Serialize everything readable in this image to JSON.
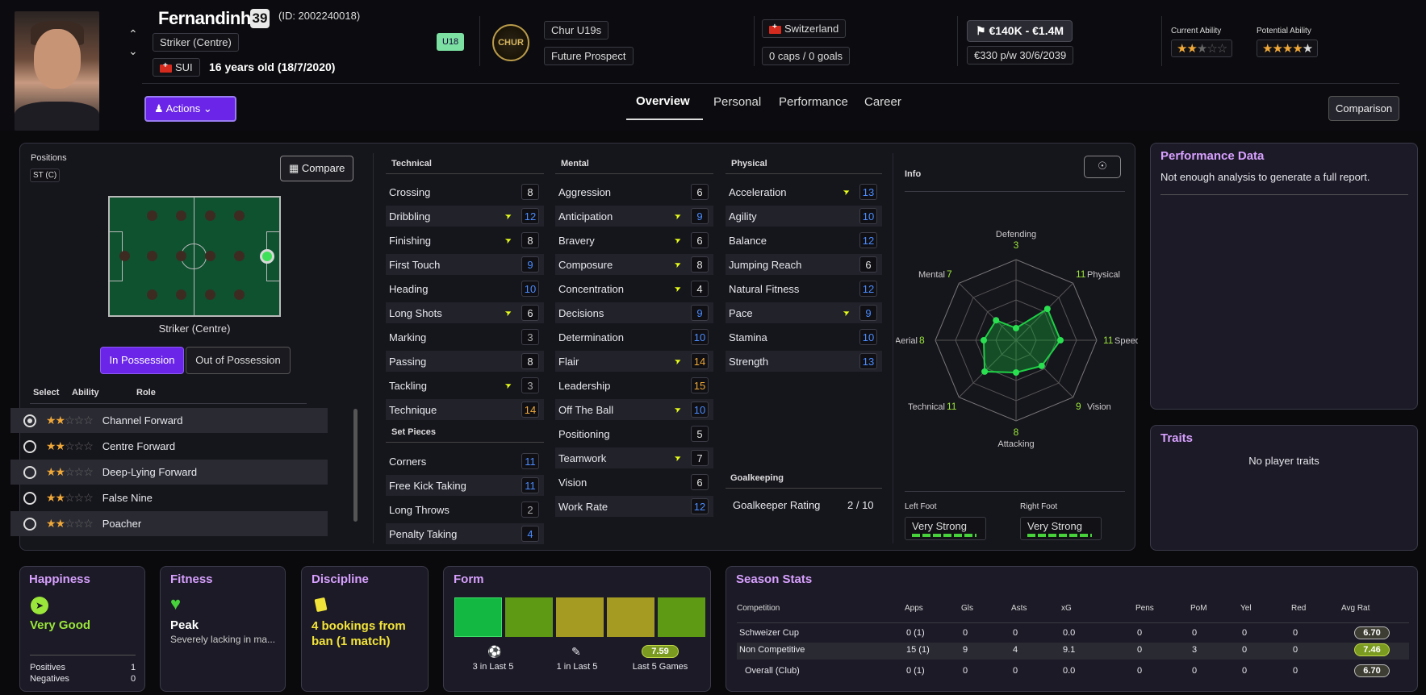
{
  "player": {
    "name": "Fernandinho",
    "number": "39",
    "id": "(ID: 2002240018)",
    "position": "Striker (Centre)",
    "nation": "SUI",
    "age": "16 years old (18/7/2020)",
    "squad_badge": "U18",
    "club": "Chur U19s",
    "club_badge": "CHUR",
    "status": "Future Prospect",
    "country": "Switzerland",
    "caps": "0 caps / 0 goals",
    "value": "€140K - €1.4M",
    "wage": "€330 p/w 30/6/2039",
    "current_ability_label": "Current Ability",
    "potential_ability_label": "Potential Ability",
    "current_ability_stars": 2,
    "potential_ability_stars": 4.5
  },
  "nav": {
    "actions": "Actions",
    "tabs": [
      "Overview",
      "Personal",
      "Performance",
      "Career"
    ],
    "active_tab": "Overview",
    "comparison": "Comparison"
  },
  "positions": {
    "title": "Positions",
    "badge": "ST (C)",
    "compare": "Compare",
    "pitch_label": "Striker (Centre)",
    "in_possession": "In Possession",
    "out_possession": "Out of Possession",
    "headers": [
      "Select",
      "Ability",
      "Role"
    ],
    "roles": [
      {
        "name": "Channel Forward",
        "stars": 2,
        "selected": true
      },
      {
        "name": "Centre Forward",
        "stars": 2,
        "selected": false
      },
      {
        "name": "Deep-Lying Forward",
        "stars": 2,
        "selected": false
      },
      {
        "name": "False Nine",
        "stars": 2,
        "selected": false
      },
      {
        "name": "Poacher",
        "stars": 2,
        "selected": false
      }
    ]
  },
  "technical": {
    "title": "Technical",
    "items": [
      {
        "name": "Crossing",
        "value": "8",
        "color": "white",
        "up": false
      },
      {
        "name": "Dribbling",
        "value": "12",
        "color": "blue",
        "up": true
      },
      {
        "name": "Finishing",
        "value": "8",
        "color": "white",
        "up": true
      },
      {
        "name": "First Touch",
        "value": "9",
        "color": "blue",
        "up": false
      },
      {
        "name": "Heading",
        "value": "10",
        "color": "blue",
        "up": false
      },
      {
        "name": "Long Shots",
        "value": "6",
        "color": "white",
        "up": true
      },
      {
        "name": "Marking",
        "value": "3",
        "color": "gray",
        "up": false
      },
      {
        "name": "Passing",
        "value": "8",
        "color": "white",
        "up": false
      },
      {
        "name": "Tackling",
        "value": "3",
        "color": "gray",
        "up": true
      },
      {
        "name": "Technique",
        "value": "14",
        "color": "orange",
        "up": false
      }
    ]
  },
  "set_pieces": {
    "title": "Set Pieces",
    "items": [
      {
        "name": "Corners",
        "value": "11",
        "color": "blue",
        "up": false
      },
      {
        "name": "Free Kick Taking",
        "value": "11",
        "color": "blue",
        "up": false
      },
      {
        "name": "Long Throws",
        "value": "2",
        "color": "gray",
        "up": false
      },
      {
        "name": "Penalty Taking",
        "value": "4",
        "color": "blue",
        "up": false
      }
    ]
  },
  "mental": {
    "title": "Mental",
    "items": [
      {
        "name": "Aggression",
        "value": "6",
        "color": "white",
        "up": false
      },
      {
        "name": "Anticipation",
        "value": "9",
        "color": "blue",
        "up": true
      },
      {
        "name": "Bravery",
        "value": "6",
        "color": "white",
        "up": true
      },
      {
        "name": "Composure",
        "value": "8",
        "color": "white",
        "up": true
      },
      {
        "name": "Concentration",
        "value": "4",
        "color": "white",
        "up": true
      },
      {
        "name": "Decisions",
        "value": "9",
        "color": "blue",
        "up": false
      },
      {
        "name": "Determination",
        "value": "10",
        "color": "blue",
        "up": false
      },
      {
        "name": "Flair",
        "value": "14",
        "color": "orange",
        "up": true
      },
      {
        "name": "Leadership",
        "value": "15",
        "color": "orange",
        "up": false
      },
      {
        "name": "Off The Ball",
        "value": "10",
        "color": "blue",
        "up": true
      },
      {
        "name": "Positioning",
        "value": "5",
        "color": "white",
        "up": false
      },
      {
        "name": "Teamwork",
        "value": "7",
        "color": "white",
        "up": true
      },
      {
        "name": "Vision",
        "value": "6",
        "color": "white",
        "up": false
      },
      {
        "name": "Work Rate",
        "value": "12",
        "color": "blue",
        "up": false
      }
    ]
  },
  "physical": {
    "title": "Physical",
    "items": [
      {
        "name": "Acceleration",
        "value": "13",
        "color": "blue",
        "up": true
      },
      {
        "name": "Agility",
        "value": "10",
        "color": "blue",
        "up": false
      },
      {
        "name": "Balance",
        "value": "12",
        "color": "blue",
        "up": false
      },
      {
        "name": "Jumping Reach",
        "value": "6",
        "color": "white",
        "up": false
      },
      {
        "name": "Natural Fitness",
        "value": "12",
        "color": "blue",
        "up": false
      },
      {
        "name": "Pace",
        "value": "9",
        "color": "blue",
        "up": true
      },
      {
        "name": "Stamina",
        "value": "10",
        "color": "blue",
        "up": false
      },
      {
        "name": "Strength",
        "value": "13",
        "color": "blue",
        "up": false
      }
    ]
  },
  "goalkeeping": {
    "title": "Goalkeeping",
    "label": "Goalkeeper Rating",
    "value": "2 / 10"
  },
  "info": {
    "title": "Info",
    "radar": [
      {
        "label": "Defending",
        "value": "3"
      },
      {
        "label": "Physical",
        "value": "11"
      },
      {
        "label": "Speed",
        "value": "11"
      },
      {
        "label": "Vision",
        "value": "9"
      },
      {
        "label": "Attacking",
        "value": "8"
      },
      {
        "label": "Technical",
        "value": "11"
      },
      {
        "label": "Aerial",
        "value": "8"
      },
      {
        "label": "Mental",
        "value": "7"
      }
    ],
    "left_foot_label": "Left Foot",
    "left_foot": "Very Strong",
    "right_foot_label": "Right Foot",
    "right_foot": "Very Strong"
  },
  "performance": {
    "title": "Performance Data",
    "text": "Not enough analysis to generate a full report."
  },
  "traits": {
    "title": "Traits",
    "text": "No player traits"
  },
  "happiness": {
    "title": "Happiness",
    "status": "Very Good",
    "positives_label": "Positives",
    "positives": "1",
    "negatives_label": "Negatives",
    "negatives": "0"
  },
  "fitness": {
    "title": "Fitness",
    "status": "Peak",
    "detail": "Severely lacking in ma..."
  },
  "discipline": {
    "title": "Discipline",
    "status": "4 bookings from ban (1 match)"
  },
  "form": {
    "title": "Form",
    "boxes": [
      "#13b843",
      "#5e9a14",
      "#a59b22",
      "#a59b22",
      "#5e9a14"
    ],
    "goals_label": "3 in Last 5",
    "assists_label": "1 in Last 5",
    "avg": "7.59",
    "avg_label": "Last 5 Games"
  },
  "season_stats": {
    "title": "Season Stats",
    "columns": [
      "Competition",
      "Apps",
      "Gls",
      "Asts",
      "xG",
      "Pens",
      "PoM",
      "Yel",
      "Red",
      "Avg Rat"
    ],
    "rows": [
      [
        "Schweizer Cup",
        "0 (1)",
        "0",
        "0",
        "0.0",
        "0",
        "0",
        "0",
        "0",
        "6.70"
      ],
      [
        "Non Competitive",
        "15 (1)",
        "9",
        "4",
        "9.1",
        "0",
        "3",
        "0",
        "0",
        "7.46"
      ],
      [
        "Overall (Club)",
        "0 (1)",
        "0",
        "0",
        "0.0",
        "0",
        "0",
        "0",
        "0",
        "6.70"
      ]
    ]
  },
  "colors": {
    "accent": "#6a25e8",
    "card_title": "#d8a0ff",
    "star": "#f0a838",
    "good": "#7ed321",
    "radar": "#17b83a"
  }
}
